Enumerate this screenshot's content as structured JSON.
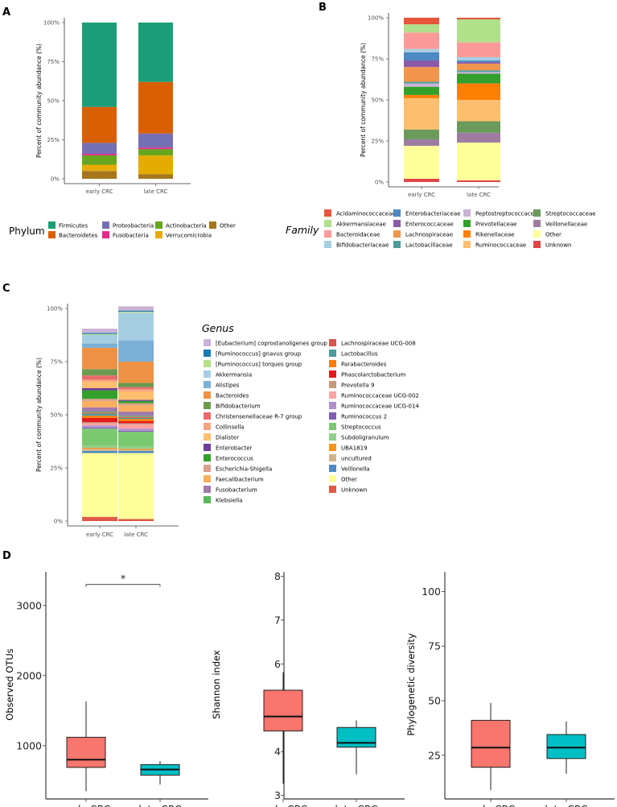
{
  "panel_labels": [
    "A",
    "B",
    "C",
    "D"
  ],
  "chart_data": [
    {
      "id": "A",
      "type": "bar",
      "stacked": true,
      "ylabel": "Percent of community abundance (%)",
      "xlabel": "",
      "yticks": [
        "0%",
        "25%",
        "50%",
        "75%",
        "100%"
      ],
      "categories": [
        "early CRC",
        "late CRC"
      ],
      "legend_title": "Phylum",
      "series": [
        {
          "name": "Other",
          "color": "#a6761d",
          "values": [
            5,
            3
          ]
        },
        {
          "name": "Verrucomicrobia",
          "color": "#e6ab02",
          "values": [
            4,
            12
          ]
        },
        {
          "name": "Actinobacteria",
          "color": "#66a61e",
          "values": [
            6,
            4
          ]
        },
        {
          "name": "Fusobacteria",
          "color": "#e7298a",
          "values": [
            1,
            1
          ]
        },
        {
          "name": "Proteobacteria",
          "color": "#7570b3",
          "values": [
            7,
            9
          ]
        },
        {
          "name": "Bacteroidetes",
          "color": "#d95f02",
          "values": [
            23,
            33
          ]
        },
        {
          "name": "Firmicutes",
          "color": "#1b9e77",
          "values": [
            54,
            38
          ]
        }
      ],
      "legend_order": [
        "Firmicutes",
        "Bacteroidetes",
        "Proteobacteria",
        "Fusobacteria",
        "Actinobacteria",
        "Verrucomicrobia",
        "Other"
      ]
    },
    {
      "id": "B",
      "type": "bar",
      "stacked": true,
      "ylabel": "Percent of community abundance (%)",
      "yticks": [
        "0%",
        "25%",
        "50%",
        "75%",
        "100%"
      ],
      "categories": [
        "early CRC",
        "late CRC"
      ],
      "legend_title": "Family",
      "series": [
        {
          "name": "Unknown",
          "color": "#e04646",
          "values": [
            2.0,
            1.0
          ]
        },
        {
          "name": "Other",
          "color": "#ffff99",
          "values": [
            20.0,
            23.0
          ]
        },
        {
          "name": "Veillonellaceae",
          "color": "#9e7ca0",
          "values": [
            4.0,
            6.0
          ]
        },
        {
          "name": "Streptococcaceae",
          "color": "#6b9a5b",
          "values": [
            6.0,
            7.0
          ]
        },
        {
          "name": "Ruminococcaceae",
          "color": "#fdbf6f",
          "values": [
            19.0,
            13.0
          ]
        },
        {
          "name": "Rikenellaceae",
          "color": "#ff7f00",
          "values": [
            2.0,
            10.0
          ]
        },
        {
          "name": "Prevotellaceae",
          "color": "#33a02c",
          "values": [
            5.0,
            6.0
          ]
        },
        {
          "name": "Peptostreptococcaceae",
          "color": "#cab2d6",
          "values": [
            2.0,
            1.0
          ]
        },
        {
          "name": "Lactobacillaceae",
          "color": "#4b9c9b",
          "values": [
            1.0,
            1.0
          ]
        },
        {
          "name": "Lachnospiraceae",
          "color": "#f0954b",
          "values": [
            9.0,
            4.0
          ]
        },
        {
          "name": "Enterococcaceae",
          "color": "#8b59a8",
          "values": [
            4.0,
            1.0
          ]
        },
        {
          "name": "Enterobacteriaceae",
          "color": "#4d8ac4",
          "values": [
            5.0,
            1.0
          ]
        },
        {
          "name": "Bifidobacteriaceae",
          "color": "#a6cee3",
          "values": [
            2.0,
            2.0
          ]
        },
        {
          "name": "Bacteroidaceae",
          "color": "#fb9a99",
          "values": [
            10.0,
            9.0
          ]
        },
        {
          "name": "Akkermansiaceae",
          "color": "#b2df8a",
          "values": [
            5.0,
            14.0
          ]
        },
        {
          "name": "Acidaminococcaceae",
          "color": "#e6553a",
          "values": [
            4.0,
            1.0
          ]
        }
      ],
      "legend_order": [
        "Acidaminococcaceae",
        "Akkermansiaceae",
        "Bacteroidaceae",
        "Bifidobacteriaceae",
        "Enterobacteriaceae",
        "Enterococcaceae",
        "Lachnospiraceae",
        "Lactobacillaceae",
        "Peptostreptococcaceae",
        "Prevotellaceae",
        "Rikenellaceae",
        "Ruminococcaceae",
        "Streptococcaceae",
        "Veillonellaceae",
        "Other",
        "Unknown"
      ]
    },
    {
      "id": "C",
      "type": "bar",
      "stacked": true,
      "ylabel": "Percent of community abundance (%)",
      "yticks": [
        "0%",
        "25%",
        "50%",
        "75%",
        "100%"
      ],
      "categories": [
        "early CRC",
        "late CRC"
      ],
      "legend_title": "Genus",
      "series": [
        {
          "name": "Unknown",
          "color": "#e05a45",
          "values": [
            2.0,
            1.0
          ]
        },
        {
          "name": "Other",
          "color": "#ffff99",
          "values": [
            30.0,
            31.0
          ]
        },
        {
          "name": "Veillonella",
          "color": "#4d8ac4",
          "values": [
            1.0,
            1.0
          ]
        },
        {
          "name": "uncultured",
          "color": "#d2b48c",
          "values": [
            1.0,
            0.5
          ]
        },
        {
          "name": "UBA1819",
          "color": "#f7931e",
          "values": [
            0.5,
            0.5
          ]
        },
        {
          "name": "Subdoligranulum",
          "color": "#8fcf8a",
          "values": [
            1.0,
            1.0
          ]
        },
        {
          "name": "Streptococcus",
          "color": "#7bc96f",
          "values": [
            8.0,
            7.0
          ]
        },
        {
          "name": "Ruminococcus 2",
          "color": "#7e5fb3",
          "values": [
            0.5,
            0.5
          ]
        },
        {
          "name": "Ruminococcaceae UCG-014",
          "color": "#b18fce",
          "values": [
            1.0,
            1.0
          ]
        },
        {
          "name": "Ruminococcaceae UCG-002",
          "color": "#fba3a3",
          "values": [
            1.0,
            2.0
          ]
        },
        {
          "name": "Prevotella 9",
          "color": "#c49a7a",
          "values": [
            0.5,
            0.5
          ]
        },
        {
          "name": "Phascolarctobacterium",
          "color": "#e31a1c",
          "values": [
            2.0,
            1.0
          ]
        },
        {
          "name": "Parabacteroides",
          "color": "#ff7f00",
          "values": [
            1.0,
            1.0
          ]
        },
        {
          "name": "Lactobacillus",
          "color": "#4b9c9b",
          "values": [
            1.0,
            0.5
          ]
        },
        {
          "name": "Lachnospiraceae UCG-008",
          "color": "#d9534f",
          "values": [
            0.5,
            0.5
          ]
        },
        {
          "name": "Klebsiella",
          "color": "#5bb75b",
          "values": [
            0.5,
            0.5
          ]
        },
        {
          "name": "Fusobacterium",
          "color": "#a17bac",
          "values": [
            2.0,
            2.0
          ]
        },
        {
          "name": "Faecalibacterium",
          "color": "#fbae5c",
          "values": [
            3.0,
            3.0
          ]
        },
        {
          "name": "Escherichia-Shigella",
          "color": "#d9a08b",
          "values": [
            1.0,
            1.0
          ]
        },
        {
          "name": "Enterococcus",
          "color": "#33a02c",
          "values": [
            4.0,
            1.0
          ]
        },
        {
          "name": "Enterobacter",
          "color": "#6a3d9a",
          "values": [
            1.0,
            0.5
          ]
        },
        {
          "name": "Dialister",
          "color": "#fdbf6f",
          "values": [
            3.0,
            4.0
          ]
        },
        {
          "name": "Collinsella",
          "color": "#f4a582",
          "values": [
            1.0,
            1.0
          ]
        },
        {
          "name": "Christensenellaceae R-7 group",
          "color": "#e96a6a",
          "values": [
            2.0,
            1.0
          ]
        },
        {
          "name": "Bifidobacterium",
          "color": "#6c9a4f",
          "values": [
            3.0,
            2.0
          ]
        },
        {
          "name": "Bacteroides",
          "color": "#ef9246",
          "values": [
            10.0,
            10.0
          ]
        },
        {
          "name": "Alistipes",
          "color": "#7aafd6",
          "values": [
            2.0,
            10.0
          ]
        },
        {
          "name": "Akkermansia",
          "color": "#a6cee3",
          "values": [
            4.0,
            13.0
          ]
        },
        {
          "name": "[Ruminococcus] torques group",
          "color": "#b2df8a",
          "values": [
            0.5,
            0.5
          ]
        },
        {
          "name": "[Ruminococcus] gnavus group",
          "color": "#1f78b4",
          "values": [
            0.5,
            0.5
          ]
        },
        {
          "name": "[Eubacterium] coprostanoligenes group",
          "color": "#cab2d6",
          "values": [
            2.0,
            2.0
          ]
        }
      ],
      "legend_order": [
        "[Eubacterium] coprostanoligenes group",
        "[Ruminococcus] gnavus group",
        "[Ruminococcus] torques group",
        "Akkermansia",
        "Alistipes",
        "Bacteroides",
        "Bifidobacterium",
        "Christensenellaceae R-7 group",
        "Collinsella",
        "Dialister",
        "Enterobacter",
        "Enterococcus",
        "Escherichia-Shigella",
        "Faecalibacterium",
        "Fusobacterium",
        "Klebsiella",
        "Lachnospiraceae UCG-008",
        "Lactobacillus",
        "Parabacteroides",
        "Phascolarctobacterium",
        "Prevotella 9",
        "Ruminococcaceae UCG-002",
        "Ruminococcaceae UCG-014",
        "Ruminococcus 2",
        "Streptococcus",
        "Subdoligranulum",
        "UBA1819",
        "uncultured",
        "Veillonella",
        "Other",
        "Unknown"
      ]
    },
    {
      "id": "D1",
      "type": "box",
      "ylabel": "Observed OTUs",
      "categories": [
        "early CRC",
        "late CRC"
      ],
      "ylim": [
        240,
        3480
      ],
      "yticks": [
        1000,
        2000,
        3000
      ],
      "annotation": "*",
      "boxes": [
        {
          "name": "early CRC",
          "color": "#f8766d",
          "min": 350,
          "q1": 690,
          "median": 800,
          "q3": 1120,
          "max": 1630
        },
        {
          "name": "late CRC",
          "color": "#00bfc4",
          "min": 445,
          "q1": 580,
          "median": 660,
          "q3": 730,
          "max": 780
        }
      ]
    },
    {
      "id": "D2",
      "type": "box",
      "ylabel": "Shannon index",
      "categories": [
        "early CRC",
        "late CRC"
      ],
      "ylim": [
        2.92,
        8.1
      ],
      "yticks": [
        3,
        4,
        5,
        6,
        7,
        8
      ],
      "boxes": [
        {
          "name": "early CRC",
          "color": "#f8766d",
          "min": 3.27,
          "q1": 4.47,
          "median": 4.8,
          "q3": 5.4,
          "max": 5.81
        },
        {
          "name": "late CRC",
          "color": "#00bfc4",
          "min": 3.48,
          "q1": 4.1,
          "median": 4.2,
          "q3": 4.55,
          "max": 4.71
        }
      ]
    },
    {
      "id": "D3",
      "type": "box",
      "ylabel": "Phylogenetic diversity",
      "categories": [
        "early CRC",
        "late CRC"
      ],
      "ylim": [
        5,
        109
      ],
      "yticks": [
        25,
        50,
        75,
        100
      ],
      "boxes": [
        {
          "name": "early CRC",
          "color": "#f8766d",
          "min": 9,
          "q1": 19.5,
          "median": 28.5,
          "q3": 41,
          "max": 49
        },
        {
          "name": "late CRC",
          "color": "#00bfc4",
          "min": 16.5,
          "q1": 23.5,
          "median": 28.5,
          "q3": 34.5,
          "max": 40.5
        }
      ]
    }
  ]
}
